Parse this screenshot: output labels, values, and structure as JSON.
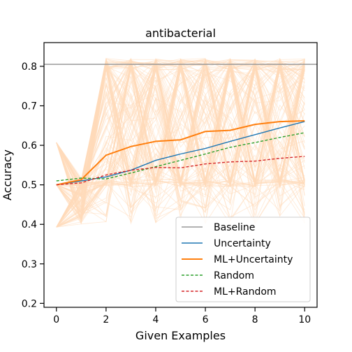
{
  "chart_data": {
    "type": "line",
    "title": "antibacterial",
    "xlabel": "Given Examples",
    "ylabel": "Accuracy",
    "xlim": [
      -0.5,
      10.5
    ],
    "ylim": [
      0.19,
      0.86
    ],
    "xticks": [
      0,
      2,
      4,
      6,
      8,
      10
    ],
    "yticks": [
      0.2,
      0.3,
      0.4,
      0.5,
      0.6,
      0.7,
      0.8
    ],
    "grid": false,
    "legend_position": "lower-right",
    "baseline": {
      "name": "Baseline",
      "value": 0.805,
      "color": "#999999"
    },
    "series": [
      {
        "name": "Uncertainty",
        "color": "#1f77b4",
        "dash": false,
        "x": [
          0,
          1,
          2,
          3,
          4,
          5,
          6,
          7,
          8,
          9,
          10
        ],
        "values": [
          0.5,
          0.51,
          0.52,
          0.537,
          0.562,
          0.578,
          0.592,
          0.61,
          0.627,
          0.644,
          0.66
        ]
      },
      {
        "name": "ML+Uncertainty",
        "color": "#ff7f0e",
        "dash": false,
        "x": [
          0,
          1,
          2,
          3,
          4,
          5,
          6,
          7,
          8,
          9,
          10
        ],
        "values": [
          0.5,
          0.513,
          0.575,
          0.597,
          0.61,
          0.614,
          0.635,
          0.638,
          0.653,
          0.66,
          0.662
        ]
      },
      {
        "name": "Random",
        "color": "#2ca02c",
        "dash": true,
        "x": [
          0,
          1,
          2,
          3,
          4,
          5,
          6,
          7,
          8,
          9,
          10
        ],
        "values": [
          0.51,
          0.517,
          0.515,
          0.53,
          0.546,
          0.562,
          0.578,
          0.595,
          0.607,
          0.62,
          0.632
        ]
      },
      {
        "name": "ML+Random",
        "color": "#d62728",
        "dash": true,
        "x": [
          0,
          1,
          2,
          3,
          4,
          5,
          6,
          7,
          8,
          9,
          10
        ],
        "values": [
          0.5,
          0.505,
          0.525,
          0.537,
          0.544,
          0.543,
          0.553,
          0.558,
          0.56,
          0.567,
          0.572
        ]
      }
    ],
    "background_trials": {
      "color": "#ffdab9",
      "count": 150,
      "note_start_values": [
        0.393,
        0.5,
        0.607
      ]
    }
  }
}
